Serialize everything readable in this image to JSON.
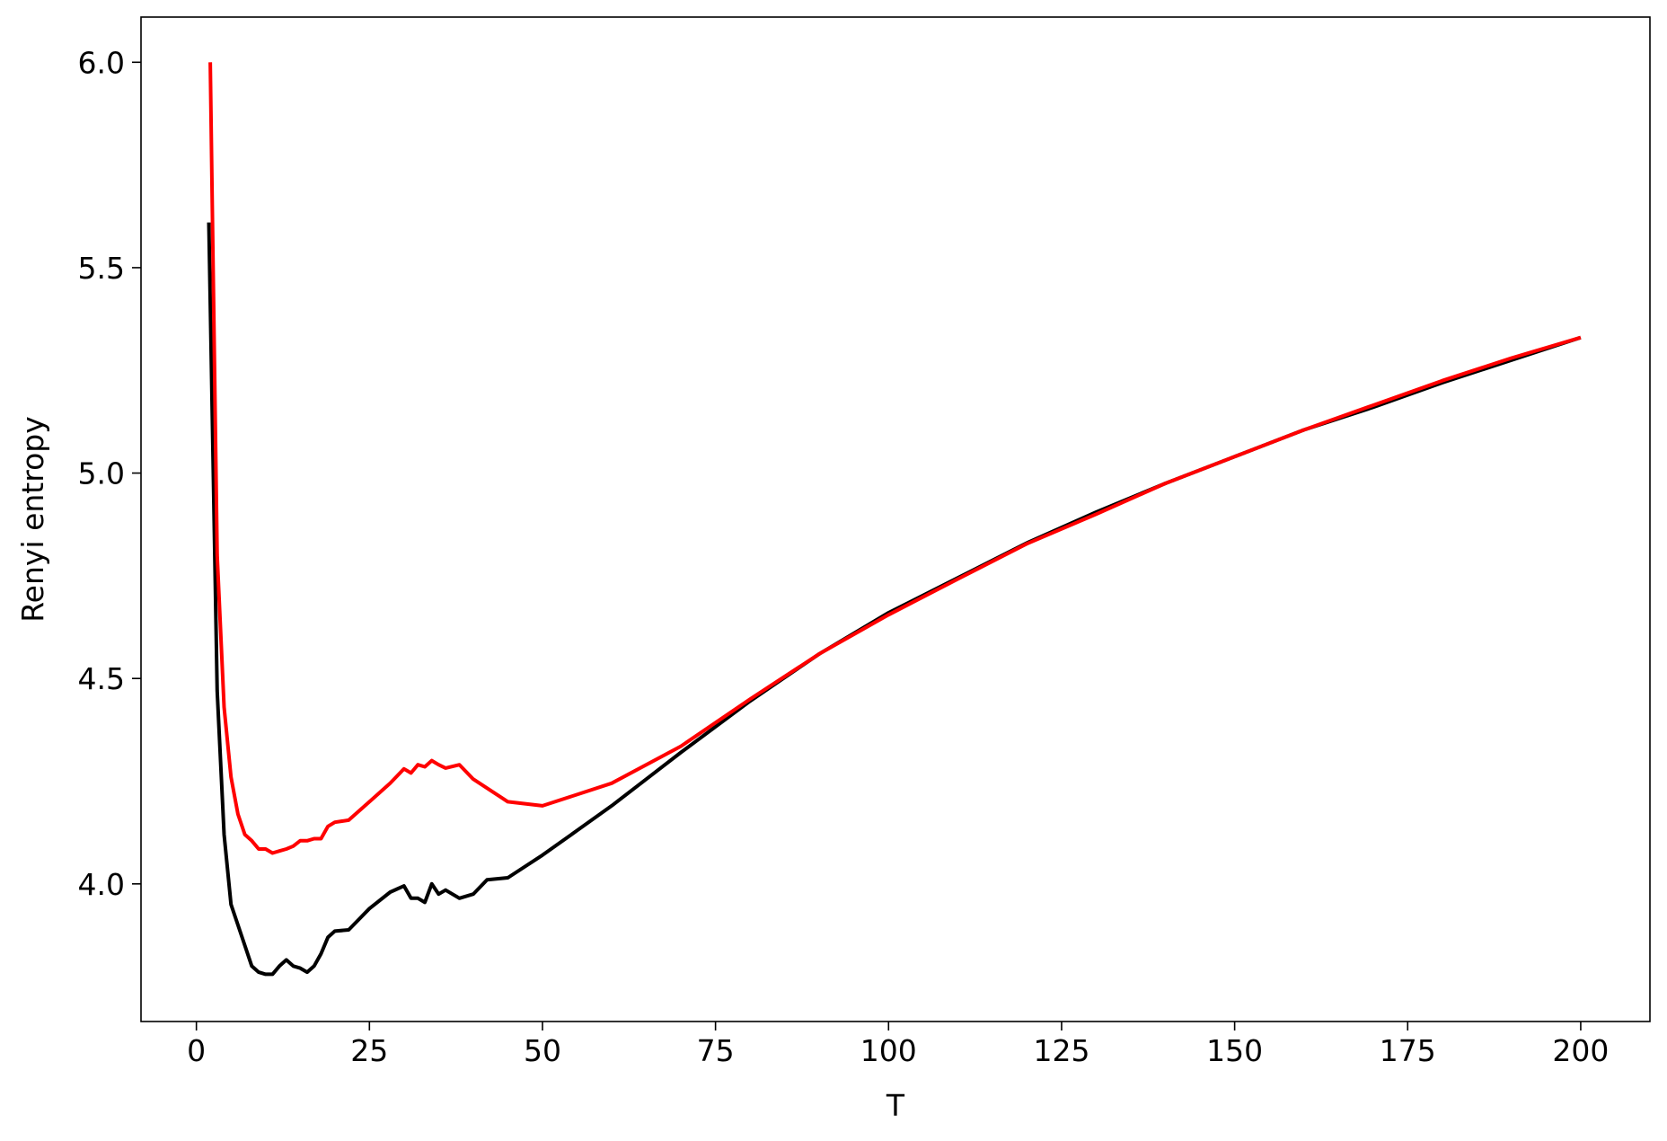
{
  "chart_data": {
    "type": "line",
    "title": "",
    "xlabel": "T",
    "ylabel": "Renyi entropy",
    "xlim": [
      -8,
      210
    ],
    "ylim": [
      3.665,
      6.11
    ],
    "xticks": [
      0,
      25,
      50,
      75,
      100,
      125,
      150,
      175,
      200
    ],
    "xtick_labels": [
      "0",
      "25",
      "50",
      "75",
      "100",
      "125",
      "150",
      "175",
      "200"
    ],
    "yticks": [
      4.0,
      4.5,
      5.0,
      5.5,
      6.0
    ],
    "ytick_labels": [
      "4.0",
      "4.5",
      "5.0",
      "5.5",
      "6.0"
    ],
    "grid": false,
    "legend": "none",
    "series": [
      {
        "color": "#000000",
        "points": [
          [
            1.8,
            5.61
          ],
          [
            3,
            4.47
          ],
          [
            4,
            4.12
          ],
          [
            5,
            3.95
          ],
          [
            6,
            3.9
          ],
          [
            7,
            3.85
          ],
          [
            8,
            3.8
          ],
          [
            9,
            3.785
          ],
          [
            10,
            3.78
          ],
          [
            11,
            3.78
          ],
          [
            12,
            3.8
          ],
          [
            13,
            3.815
          ],
          [
            14,
            3.8
          ],
          [
            15,
            3.795
          ],
          [
            16,
            3.785
          ],
          [
            17,
            3.8
          ],
          [
            18,
            3.83
          ],
          [
            19,
            3.87
          ],
          [
            20,
            3.885
          ],
          [
            22,
            3.888
          ],
          [
            25,
            3.94
          ],
          [
            28,
            3.98
          ],
          [
            30,
            3.995
          ],
          [
            31,
            3.965
          ],
          [
            32,
            3.965
          ],
          [
            33,
            3.955
          ],
          [
            34,
            4.0
          ],
          [
            35,
            3.975
          ],
          [
            36,
            3.985
          ],
          [
            38,
            3.965
          ],
          [
            40,
            3.975
          ],
          [
            42,
            4.01
          ],
          [
            45,
            4.015
          ],
          [
            50,
            4.07
          ],
          [
            55,
            4.13
          ],
          [
            60,
            4.19
          ],
          [
            65,
            4.255
          ],
          [
            70,
            4.32
          ],
          [
            80,
            4.445
          ],
          [
            90,
            4.56
          ],
          [
            100,
            4.66
          ],
          [
            110,
            4.745
          ],
          [
            120,
            4.83
          ],
          [
            130,
            4.905
          ],
          [
            140,
            4.975
          ],
          [
            150,
            5.04
          ],
          [
            160,
            5.105
          ],
          [
            170,
            5.16
          ],
          [
            180,
            5.22
          ],
          [
            190,
            5.275
          ],
          [
            200,
            5.33
          ]
        ]
      },
      {
        "color": "#ff0000",
        "points": [
          [
            2,
            6.0
          ],
          [
            3,
            4.8
          ],
          [
            4,
            4.43
          ],
          [
            5,
            4.26
          ],
          [
            6,
            4.17
          ],
          [
            7,
            4.12
          ],
          [
            8,
            4.105
          ],
          [
            9,
            4.085
          ],
          [
            10,
            4.085
          ],
          [
            11,
            4.075
          ],
          [
            12,
            4.08
          ],
          [
            13,
            4.085
          ],
          [
            14,
            4.092
          ],
          [
            15,
            4.105
          ],
          [
            16,
            4.105
          ],
          [
            17,
            4.11
          ],
          [
            18,
            4.11
          ],
          [
            19,
            4.14
          ],
          [
            20,
            4.15
          ],
          [
            22,
            4.155
          ],
          [
            25,
            4.2
          ],
          [
            28,
            4.245
          ],
          [
            30,
            4.28
          ],
          [
            31,
            4.27
          ],
          [
            32,
            4.29
          ],
          [
            33,
            4.285
          ],
          [
            34,
            4.3
          ],
          [
            35,
            4.29
          ],
          [
            36,
            4.282
          ],
          [
            38,
            4.29
          ],
          [
            40,
            4.255
          ],
          [
            45,
            4.2
          ],
          [
            50,
            4.19
          ],
          [
            60,
            4.245
          ],
          [
            70,
            4.335
          ],
          [
            80,
            4.45
          ],
          [
            90,
            4.56
          ],
          [
            100,
            4.655
          ],
          [
            110,
            4.742
          ],
          [
            120,
            4.828
          ],
          [
            130,
            4.9
          ],
          [
            140,
            4.975
          ],
          [
            150,
            5.04
          ],
          [
            160,
            5.105
          ],
          [
            170,
            5.165
          ],
          [
            180,
            5.225
          ],
          [
            190,
            5.28
          ],
          [
            200,
            5.33
          ]
        ]
      }
    ]
  }
}
